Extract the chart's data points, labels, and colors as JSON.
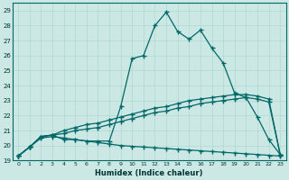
{
  "xlabel": "Humidex (Indice chaleur)",
  "xlim": [
    -0.5,
    23.5
  ],
  "ylim": [
    19,
    29.5
  ],
  "xticks": [
    0,
    1,
    2,
    3,
    4,
    5,
    6,
    7,
    8,
    9,
    10,
    11,
    12,
    13,
    14,
    15,
    16,
    17,
    18,
    19,
    20,
    21,
    22,
    23
  ],
  "yticks": [
    19,
    20,
    21,
    22,
    23,
    24,
    25,
    26,
    27,
    28,
    29
  ],
  "bg_color": "#cce8e4",
  "line_color": "#006868",
  "grid_color": "#b0d8d0",
  "line1_y": [
    19.3,
    19.9,
    20.6,
    20.7,
    20.4,
    20.4,
    20.3,
    20.3,
    20.3,
    22.6,
    25.8,
    26.0,
    28.0,
    28.9,
    27.6,
    27.1,
    27.7,
    26.5,
    25.5,
    23.5,
    23.2,
    21.9,
    20.4,
    19.4
  ],
  "line2_y": [
    19.3,
    19.9,
    20.5,
    20.6,
    20.5,
    20.4,
    20.3,
    20.2,
    20.1,
    20.0,
    19.95,
    19.9,
    19.85,
    19.8,
    19.75,
    19.7,
    19.65,
    19.6,
    19.55,
    19.5,
    19.45,
    19.4,
    19.35,
    19.3
  ],
  "line3_y": [
    19.3,
    19.9,
    20.6,
    20.7,
    21.0,
    21.2,
    21.4,
    21.5,
    21.7,
    21.9,
    22.1,
    22.3,
    22.5,
    22.6,
    22.8,
    23.0,
    23.1,
    23.2,
    23.3,
    23.4,
    23.4,
    23.3,
    23.1,
    19.4
  ],
  "line4_y": [
    19.3,
    19.9,
    20.6,
    20.7,
    20.8,
    21.0,
    21.1,
    21.2,
    21.4,
    21.6,
    21.8,
    22.0,
    22.2,
    22.3,
    22.5,
    22.6,
    22.8,
    22.9,
    23.0,
    23.1,
    23.2,
    23.1,
    22.9,
    19.4
  ]
}
